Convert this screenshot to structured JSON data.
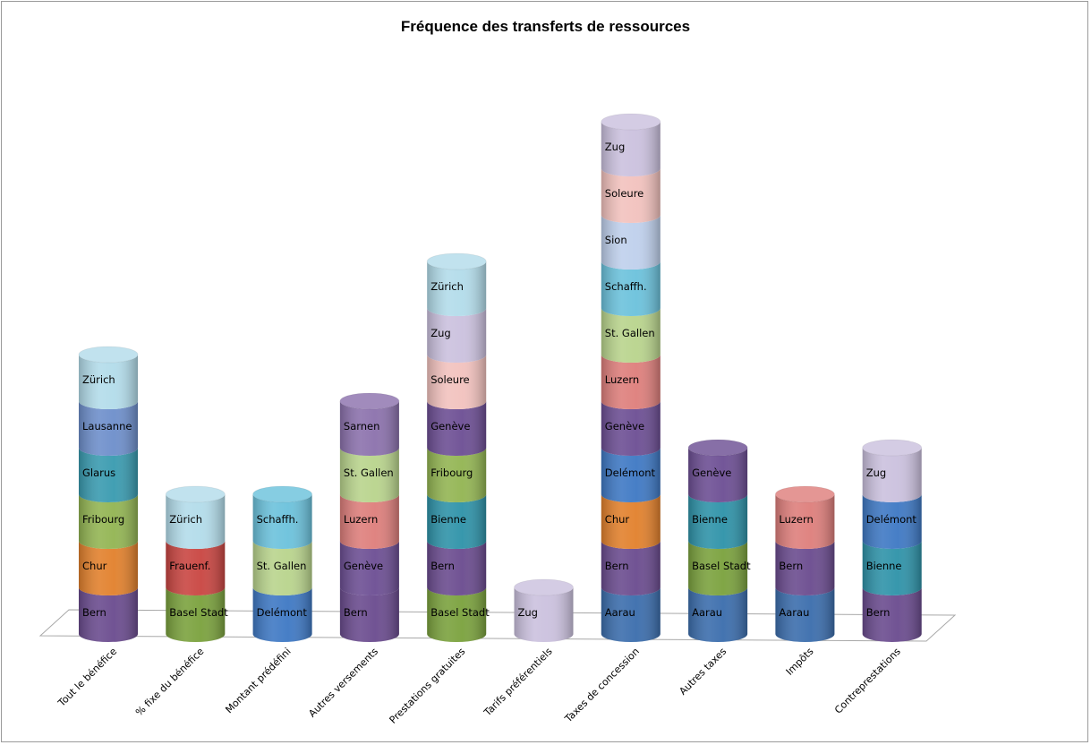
{
  "colors": {
    "Bern": "#6b4c8f",
    "Chur": "#e2812d",
    "Fribourg": "#93b553",
    "Glarus": "#3a9bb0",
    "Lausanne": "#6e8fcb",
    "Zürich": "#b3dcea",
    "Basel Stadt": "#7ba23e",
    "Frauenf.": "#c94642",
    "Delémont": "#3f79c4",
    "St. Gallen": "#b9d48d",
    "Schaffh.": "#6cc2dc",
    "Genève": "#6d4f94",
    "Luzern": "#de7f7c",
    "Sarnen": "#8c72ad",
    "Bienne": "#2f93a9",
    "Soleure": "#f2c2be",
    "Zug": "#cbc1de",
    "Aarau": "#3c6ead",
    "Sion": "#bfd0ec"
  },
  "chart_data": {
    "type": "bar",
    "title": "Fréquence des transferts de ressources",
    "categories": [
      "Tout le bénéfice",
      "% fixe du bénéfice",
      "Montant prédéfini",
      "Autres versements",
      "Prestations gratuites",
      "Tarifs préférentiels",
      "Taxes de concession",
      "Autres taxes",
      "Impôts",
      "Contreprestations"
    ],
    "stacks": [
      [
        "Bern",
        "Chur",
        "Fribourg",
        "Glarus",
        "Lausanne",
        "Zürich"
      ],
      [
        "Basel Stadt",
        "Frauenf.",
        "Zürich"
      ],
      [
        "Delémont",
        "St. Gallen",
        "Schaffh."
      ],
      [
        "Bern",
        "Genève",
        "Luzern",
        "St. Gallen",
        "Sarnen"
      ],
      [
        "Basel Stadt",
        "Bern",
        "Bienne",
        "Fribourg",
        "Genève",
        "Soleure",
        "Zug",
        "Zürich"
      ],
      [
        "Zug"
      ],
      [
        "Aarau",
        "Bern",
        "Chur",
        "Delémont",
        "Genève",
        "Luzern",
        "St. Gallen",
        "Schaffh.",
        "Sion",
        "Soleure",
        "Zug"
      ],
      [
        "Aarau",
        "Basel Stadt",
        "Bienne",
        "Genève"
      ],
      [
        "Aarau",
        "Bern",
        "Luzern"
      ],
      [
        "Bern",
        "Bienne",
        "Delémont",
        "Zug"
      ]
    ],
    "values": [
      6,
      3,
      3,
      5,
      8,
      1,
      11,
      4,
      3,
      4
    ],
    "ylim": [
      0,
      11
    ],
    "grid": false,
    "legend": "none"
  }
}
